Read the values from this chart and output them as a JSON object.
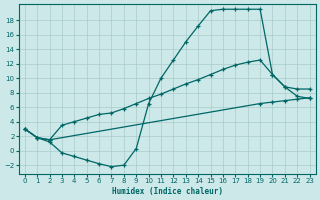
{
  "xlabel": "Humidex (Indice chaleur)",
  "bg_color": "#cce8e8",
  "grid_color": "#aacccc",
  "line_color": "#006666",
  "xlim": [
    -0.5,
    23.5
  ],
  "ylim": [
    -3.2,
    20.2
  ],
  "xticks": [
    0,
    1,
    2,
    3,
    4,
    5,
    6,
    7,
    8,
    9,
    10,
    11,
    12,
    13,
    14,
    15,
    16,
    17,
    18,
    19,
    20,
    21,
    22,
    23
  ],
  "yticks": [
    -2,
    0,
    2,
    4,
    6,
    8,
    10,
    12,
    14,
    16,
    18
  ],
  "line1_x": [
    0,
    1,
    2,
    19,
    20,
    21,
    22,
    23
  ],
  "line1_y": [
    3.0,
    1.8,
    1.5,
    6.5,
    6.7,
    6.9,
    7.1,
    7.3
  ],
  "line2_x": [
    0,
    1,
    2,
    3,
    4,
    5,
    6,
    7,
    8,
    9,
    10,
    11,
    12,
    13,
    14,
    15,
    16,
    17,
    18,
    19,
    20,
    21,
    22,
    23
  ],
  "line2_y": [
    3.0,
    1.8,
    1.5,
    3.5,
    4.0,
    4.5,
    5.0,
    5.2,
    5.8,
    6.5,
    7.2,
    7.8,
    8.5,
    9.2,
    9.8,
    10.5,
    11.2,
    11.8,
    12.2,
    12.5,
    10.5,
    8.8,
    8.5,
    8.5
  ],
  "line3_x": [
    0,
    1,
    2,
    3,
    4,
    5,
    6,
    7,
    8,
    9,
    10,
    11,
    12,
    13,
    14,
    15,
    16,
    17,
    18,
    19,
    20,
    21,
    22,
    23
  ],
  "line3_y": [
    3.0,
    1.8,
    1.2,
    -0.3,
    -0.8,
    -1.3,
    -1.8,
    -2.2,
    -2.0,
    0.3,
    6.5,
    10.0,
    12.5,
    15.0,
    17.2,
    19.3,
    19.5,
    19.5,
    19.5,
    19.5,
    10.5,
    8.8,
    7.5,
    7.2
  ]
}
